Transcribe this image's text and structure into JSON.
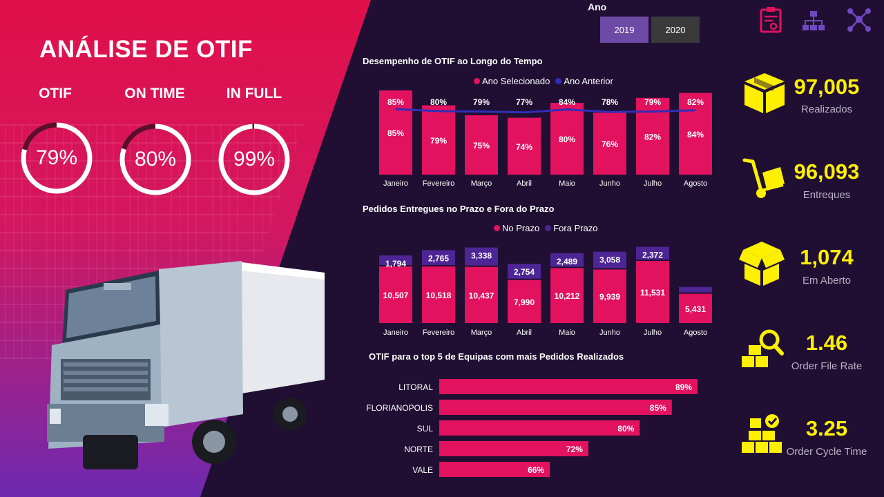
{
  "hero": {
    "title": "ANÁLISE DE OTIF",
    "kpis": [
      {
        "label": "OTIF",
        "value": "79%",
        "level": 0.79
      },
      {
        "label": "ON TIME",
        "value": "80%",
        "level": 0.8
      },
      {
        "label": "IN FULL",
        "value": "99%",
        "level": 0.99
      }
    ]
  },
  "slicer": {
    "label": "Ano",
    "options": [
      "2019",
      "2020"
    ],
    "selected": "2019"
  },
  "top_icons": [
    "report-icon",
    "hierarchy-icon",
    "network-icon"
  ],
  "colors": {
    "accent": "#e2125f",
    "secondary": "#2f2fb7",
    "late": "#4d2595",
    "kpi_value": "#fff000",
    "background": "#200f33"
  },
  "otif_chart": {
    "title": "Desempenho de OTIF ao Longo do Tempo",
    "legend": [
      "Ano Selecionado",
      "Ano Anterior"
    ]
  },
  "delivery_chart": {
    "title": "Pedidos Entregues no Prazo e Fora do Prazo",
    "legend": [
      "No Prazo",
      "Fora Prazo"
    ]
  },
  "teams_chart": {
    "title": "OTIF para o top 5 de Equipas com mais Pedidos Realizados"
  },
  "right_kpis": [
    {
      "value": "97,005",
      "label": "Realizados",
      "icon": "box-icon"
    },
    {
      "value": "96,093",
      "label": "Entreques",
      "icon": "hand-truck-icon"
    },
    {
      "value": "1,074",
      "label": "Em Aberto",
      "icon": "open-box-icon"
    },
    {
      "value": "1.46",
      "label": "Order File Rate",
      "icon": "boxes-search-icon"
    },
    {
      "value": "3.25",
      "label": "Order Cycle Time",
      "icon": "boxes-check-icon"
    }
  ],
  "chart_data": [
    {
      "type": "bar",
      "title": "Desempenho de OTIF ao Longo do Tempo",
      "categories": [
        "Janeiro",
        "Fevereiro",
        "Março",
        "Abril",
        "Maio",
        "Junho",
        "Julho",
        "Agosto"
      ],
      "series": [
        {
          "name": "Ano Selecionado",
          "type": "bar",
          "values": [
            85,
            79,
            75,
            74,
            80,
            76,
            82,
            84
          ],
          "labels": [
            "85%",
            "79%",
            "75%",
            "74%",
            "80%",
            "76%",
            "82%",
            "84%"
          ]
        },
        {
          "name": "Ano Anterior",
          "type": "line",
          "values": [
            85,
            80,
            79,
            77,
            84,
            78,
            79,
            82
          ],
          "labels": [
            "85%",
            "80%",
            "79%",
            "77%",
            "84%",
            "78%",
            "79%",
            "82%"
          ]
        }
      ],
      "legend": "top"
    },
    {
      "type": "bar",
      "stacked": true,
      "title": "Pedidos Entregues no Prazo e Fora do Prazo",
      "categories": [
        "Janeiro",
        "Fevereiro",
        "Março",
        "Abril",
        "Maio",
        "Junho",
        "Julho",
        "Agosto"
      ],
      "series": [
        {
          "name": "No Prazo",
          "values": [
            10507,
            10518,
            10437,
            7990,
            10212,
            9939,
            11531,
            5431
          ],
          "labels": [
            "10,507",
            "10,518",
            "10,437",
            "7,990",
            "10,212",
            "9,939",
            "11,531",
            "5,431"
          ]
        },
        {
          "name": "Fora Prazo",
          "values": [
            1794,
            2765,
            3338,
            2754,
            2489,
            3058,
            2372,
            800
          ],
          "labels": [
            "1,794",
            "2,765",
            "3,338",
            "2,754",
            "2,489",
            "3,058",
            "2,372",
            ""
          ]
        }
      ],
      "legend": "top"
    },
    {
      "type": "bar",
      "orientation": "horizontal",
      "title": "OTIF para o top 5 de Equipas com mais Pedidos Realizados",
      "categories": [
        "LITORAL",
        "FLORIANOPOLIS",
        "SUL",
        "NORTE",
        "VALE"
      ],
      "values": [
        89,
        85,
        80,
        72,
        66
      ],
      "labels": [
        "89%",
        "85%",
        "80%",
        "72%",
        "66%"
      ]
    }
  ]
}
